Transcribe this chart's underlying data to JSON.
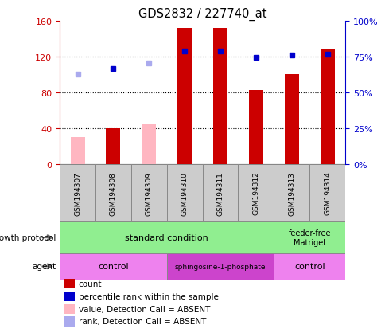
{
  "title": "GDS2832 / 227740_at",
  "samples": [
    "GSM194307",
    "GSM194308",
    "GSM194309",
    "GSM194310",
    "GSM194311",
    "GSM194312",
    "GSM194313",
    "GSM194314"
  ],
  "count_values": [
    null,
    40,
    null,
    152,
    152,
    83,
    100,
    128
  ],
  "count_absent": [
    30,
    null,
    44,
    null,
    null,
    null,
    null,
    null
  ],
  "percentile_rank": [
    null,
    107,
    null,
    126,
    126,
    119,
    122,
    123
  ],
  "percentile_absent": [
    100,
    null,
    113,
    null,
    null,
    null,
    null,
    null
  ],
  "ylim_left": [
    0,
    160
  ],
  "left_ticks": [
    0,
    40,
    80,
    120,
    160
  ],
  "left_tick_labels": [
    "0",
    "40",
    "80",
    "120",
    "160"
  ],
  "right_ticks": [
    0,
    25,
    50,
    75,
    100
  ],
  "right_tick_labels": [
    "0%",
    "25%",
    "50%",
    "75%",
    "100%"
  ],
  "bar_color": "#cc0000",
  "bar_absent_color": "#ffb6c1",
  "dot_color": "#0000cc",
  "dot_absent_color": "#aaaaee",
  "legend_items": [
    {
      "label": "count",
      "color": "#cc0000"
    },
    {
      "label": "percentile rank within the sample",
      "color": "#0000cc"
    },
    {
      "label": "value, Detection Call = ABSENT",
      "color": "#ffb6c1"
    },
    {
      "label": "rank, Detection Call = ABSENT",
      "color": "#aaaaee"
    }
  ],
  "growth_std_text": "standard condition",
  "growth_ff_text": "feeder-free\nMatrigel",
  "growth_color": "#90ee90",
  "agent_ctrl_text": "control",
  "agent_sph_text": "sphingosine-1-phosphate",
  "agent_ctrl_color": "#ee82ee",
  "agent_sph_color": "#cc44cc",
  "sample_box_color": "#cccccc",
  "sample_box_edge": "#888888",
  "label_growth": "growth protocol",
  "label_agent": "agent",
  "arrow_color": "#666666"
}
